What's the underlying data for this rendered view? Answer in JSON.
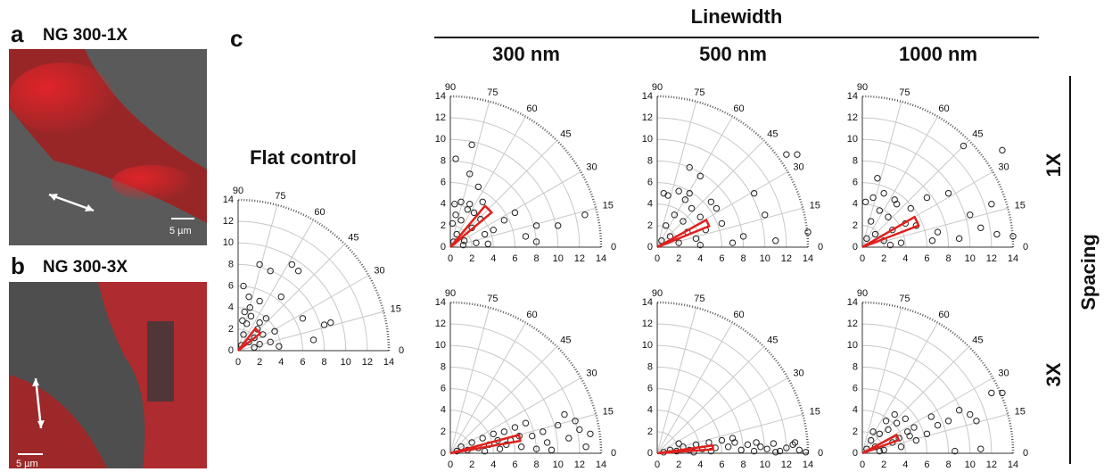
{
  "panel_a": {
    "letter": "a",
    "title": "NG 300-1X",
    "scale": "5 µm"
  },
  "panel_b": {
    "letter": "b",
    "title": "NG 300-3X",
    "scale": "5 µm"
  },
  "panel_c": {
    "letter": "c",
    "header": "Linewidth",
    "columns": [
      "300 nm",
      "500 nm",
      "1000 nm"
    ],
    "rows": [
      "1X",
      "3X"
    ],
    "row_header": "Spacing",
    "flat_title": "Flat control"
  },
  "chart_data": [
    {
      "type": "polar-scatter",
      "xlim": [
        0,
        14
      ],
      "ylim": [
        0,
        14
      ],
      "xticks": [
        0,
        2,
        4,
        6,
        8,
        10,
        12,
        14
      ],
      "yticks": [
        0,
        2,
        4,
        6,
        8,
        10,
        12,
        14
      ],
      "angle_ticks": [
        0,
        15,
        30,
        45,
        60,
        75,
        90
      ],
      "color": "#222222",
      "sector_color": "#e0201c",
      "sector": {
        "from": 38,
        "to": 52,
        "r": 2.6
      },
      "x": [
        0.3,
        0.5,
        0.8,
        1.0,
        1.2,
        1.5,
        1.8,
        2.0,
        2.3,
        2.6,
        3.0,
        3.4,
        3.8,
        0.6,
        1.1,
        2.0,
        0.5,
        2.0,
        3.0,
        4.0,
        6.0,
        7.0,
        8.0,
        8.6,
        5.0,
        5.6,
        1.0,
        2.0,
        1.5,
        0.4
      ],
      "y": [
        0.5,
        1.5,
        2.5,
        0.8,
        3.2,
        1.2,
        2.0,
        0.6,
        1.5,
        3.0,
        0.8,
        1.8,
        0.4,
        3.6,
        4.0,
        2.6,
        6.0,
        8.0,
        7.4,
        5.0,
        3.0,
        1.0,
        2.4,
        2.6,
        8.0,
        7.4,
        5.0,
        4.6,
        0.3,
        2.8
      ]
    },
    {
      "type": "polar-scatter",
      "xlim": [
        0,
        14
      ],
      "ylim": [
        0,
        14
      ],
      "xticks": [
        0,
        2,
        4,
        6,
        8,
        10,
        12,
        14
      ],
      "yticks": [
        0,
        2,
        4,
        6,
        8,
        10,
        12,
        14
      ],
      "angle_ticks": [
        0,
        15,
        30,
        45,
        60,
        75,
        90
      ],
      "color": "#222222",
      "sector_color": "#e0201c",
      "sector": {
        "from": 40,
        "to": 50,
        "r": 5.0
      },
      "x": [
        0.3,
        0.6,
        1.0,
        1.3,
        1.6,
        2.0,
        2.4,
        2.8,
        3.2,
        0.5,
        1.0,
        1.8,
        2.2,
        0.4,
        2.0,
        1.8,
        0.5,
        6.0,
        8.0,
        10.0,
        12.5,
        5.0,
        8.0,
        4.0,
        3.5,
        7.0,
        2.6,
        0.2,
        1.2,
        3.0
      ],
      "y": [
        0.5,
        1.2,
        2.5,
        0.6,
        3.5,
        1.8,
        0.4,
        2.6,
        1.2,
        3.0,
        4.2,
        4.0,
        3.2,
        4.0,
        9.5,
        6.8,
        8.2,
        3.2,
        2.0,
        2.0,
        3.0,
        2.5,
        0.5,
        1.6,
        0.3,
        1.0,
        5.6,
        2.2,
        0.2,
        4.2
      ]
    },
    {
      "type": "polar-scatter",
      "xlim": [
        0,
        14
      ],
      "ylim": [
        0,
        14
      ],
      "xticks": [
        0,
        2,
        4,
        6,
        8,
        10,
        12,
        14
      ],
      "yticks": [
        0,
        2,
        4,
        6,
        8,
        10,
        12,
        14
      ],
      "angle_ticks": [
        0,
        15,
        30,
        45,
        60,
        75,
        90
      ],
      "color": "#222222",
      "sector_color": "#e0201c",
      "sector": {
        "from": 22,
        "to": 29,
        "r": 5.2
      },
      "x": [
        0.4,
        0.8,
        1.2,
        1.6,
        2.0,
        2.4,
        2.8,
        3.2,
        3.6,
        4.0,
        4.5,
        5.0,
        1.0,
        2.0,
        3.0,
        4.0,
        3.0,
        4.0,
        6.0,
        9.0,
        10.0,
        12.0,
        13.0,
        14.0,
        8.0,
        7.0,
        11.0,
        5.5,
        0.6,
        2.6
      ],
      "y": [
        0.6,
        2.0,
        1.0,
        3.0,
        0.4,
        2.4,
        1.4,
        3.6,
        0.8,
        2.8,
        1.6,
        4.2,
        4.8,
        5.2,
        7.4,
        6.6,
        5.0,
        0.2,
        2.2,
        5.0,
        3.0,
        8.6,
        8.6,
        1.4,
        1.0,
        0.4,
        0.6,
        3.6,
        5.0,
        4.4
      ]
    },
    {
      "type": "polar-scatter",
      "xlim": [
        0,
        14
      ],
      "ylim": [
        0,
        14
      ],
      "xticks": [
        0,
        2,
        4,
        6,
        8,
        10,
        12,
        14
      ],
      "yticks": [
        0,
        2,
        4,
        6,
        8,
        10,
        12,
        14
      ],
      "angle_ticks": [
        0,
        15,
        30,
        45,
        60,
        75,
        90
      ],
      "color": "#222222",
      "sector_color": "#e0201c",
      "sector": {
        "from": 21,
        "to": 30,
        "r": 5.6
      },
      "x": [
        0.4,
        0.8,
        1.2,
        1.6,
        2.0,
        2.4,
        2.8,
        3.2,
        3.6,
        4.0,
        4.5,
        1.0,
        2.0,
        3.0,
        1.4,
        6.0,
        8.0,
        9.4,
        10.0,
        12.0,
        13.0,
        14.0,
        7.0,
        11.0,
        12.5,
        5.0,
        6.5,
        9.0,
        0.3,
        2.6
      ],
      "y": [
        0.8,
        2.4,
        1.2,
        3.4,
        0.6,
        2.8,
        1.6,
        4.0,
        0.4,
        2.2,
        3.6,
        4.6,
        5.0,
        4.4,
        6.4,
        4.6,
        5.0,
        9.4,
        3.0,
        4.0,
        9.0,
        1.0,
        1.4,
        1.8,
        1.2,
        2.0,
        0.6,
        0.8,
        4.2,
        0.2
      ]
    },
    {
      "type": "polar-scatter",
      "xlim": [
        0,
        14
      ],
      "ylim": [
        0,
        14
      ],
      "xticks": [
        0,
        2,
        4,
        6,
        8,
        10,
        12,
        14
      ],
      "yticks": [
        0,
        2,
        4,
        6,
        8,
        10,
        12,
        14
      ],
      "angle_ticks": [
        0,
        15,
        30,
        45,
        60,
        75,
        90
      ],
      "color": "#222222",
      "sector_color": "#e0201c",
      "sector": {
        "from": 10,
        "to": 15,
        "r": 6.6
      },
      "x": [
        0.6,
        1.0,
        1.6,
        2.0,
        2.6,
        3.0,
        3.6,
        4.0,
        4.6,
        5.0,
        5.6,
        6.0,
        6.6,
        7.0,
        7.6,
        8.0,
        8.6,
        9.0,
        10.0,
        10.6,
        11.0,
        12.0,
        12.6,
        13.0,
        3.2,
        4.4,
        5.2,
        6.4,
        9.4,
        11.6
      ],
      "y": [
        0.2,
        0.6,
        0.3,
        1.0,
        0.5,
        1.4,
        0.8,
        1.8,
        0.4,
        2.0,
        1.2,
        2.4,
        0.6,
        2.8,
        1.6,
        0.4,
        2.0,
        1.0,
        2.6,
        3.6,
        1.4,
        2.2,
        0.6,
        1.8,
        0.2,
        1.2,
        0.8,
        1.6,
        0.3,
        3.0
      ]
    },
    {
      "type": "polar-scatter",
      "xlim": [
        0,
        14
      ],
      "ylim": [
        0,
        14
      ],
      "xticks": [
        0,
        2,
        4,
        6,
        8,
        10,
        12,
        14
      ],
      "yticks": [
        0,
        2,
        4,
        6,
        8,
        10,
        12,
        14
      ],
      "angle_ticks": [
        0,
        15,
        30,
        45,
        60,
        75,
        90
      ],
      "color": "#222222",
      "sector_color": "#e0201c",
      "sector": {
        "from": 4,
        "to": 8,
        "r": 5.2
      },
      "x": [
        0.6,
        1.2,
        1.8,
        2.4,
        3.0,
        3.6,
        4.2,
        4.8,
        5.4,
        6.0,
        6.6,
        7.2,
        7.8,
        8.4,
        9.0,
        9.6,
        10.2,
        10.8,
        11.4,
        12.0,
        12.6,
        13.2,
        13.8,
        2.0,
        3.4,
        5.0,
        7.0,
        9.2,
        11.0,
        12.8
      ],
      "y": [
        0.1,
        0.3,
        0.2,
        0.6,
        0.3,
        0.8,
        0.4,
        1.0,
        0.5,
        1.2,
        0.6,
        1.0,
        0.3,
        0.8,
        0.2,
        0.6,
        0.4,
        0.9,
        0.2,
        0.5,
        0.8,
        0.3,
        0.1,
        0.9,
        0.1,
        0.2,
        1.4,
        1.0,
        0.1,
        1.0
      ]
    },
    {
      "type": "polar-scatter",
      "xlim": [
        0,
        14
      ],
      "ylim": [
        0,
        14
      ],
      "xticks": [
        0,
        2,
        4,
        6,
        8,
        10,
        12,
        14
      ],
      "yticks": [
        0,
        2,
        4,
        6,
        8,
        10,
        12,
        14
      ],
      "angle_ticks": [
        0,
        15,
        30,
        45,
        60,
        75,
        90
      ],
      "color": "#222222",
      "sector_color": "#e0201c",
      "sector": {
        "from": 20,
        "to": 28,
        "r": 3.6
      },
      "x": [
        0.4,
        0.8,
        1.2,
        1.6,
        2.0,
        2.4,
        2.8,
        3.2,
        3.6,
        4.0,
        4.4,
        4.8,
        1.0,
        2.2,
        3.0,
        4.2,
        5.0,
        6.0,
        7.0,
        8.0,
        9.0,
        10.0,
        10.6,
        12.0,
        13.0,
        11.0,
        8.6,
        6.4,
        1.6,
        3.4
      ],
      "y": [
        0.4,
        1.2,
        0.6,
        1.8,
        0.3,
        2.2,
        1.0,
        2.8,
        0.6,
        3.2,
        1.6,
        2.4,
        2.0,
        3.0,
        3.6,
        2.0,
        1.2,
        1.8,
        2.6,
        3.0,
        4.0,
        3.6,
        3.0,
        5.6,
        5.6,
        0.4,
        0.2,
        3.4,
        0.2,
        1.4
      ]
    }
  ]
}
